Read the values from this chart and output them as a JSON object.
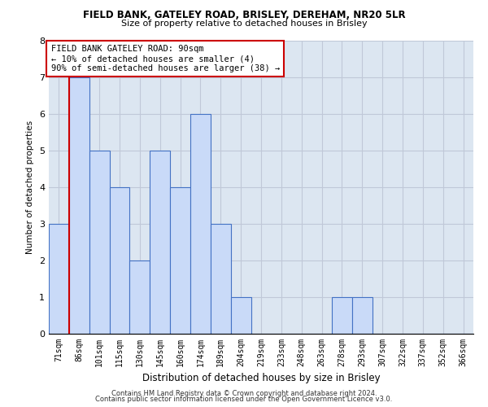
{
  "title1": "FIELD BANK, GATELEY ROAD, BRISLEY, DEREHAM, NR20 5LR",
  "title2": "Size of property relative to detached houses in Brisley",
  "xlabel": "Distribution of detached houses by size in Brisley",
  "ylabel": "Number of detached properties",
  "categories": [
    "71sqm",
    "86sqm",
    "101sqm",
    "115sqm",
    "130sqm",
    "145sqm",
    "160sqm",
    "174sqm",
    "189sqm",
    "204sqm",
    "219sqm",
    "233sqm",
    "248sqm",
    "263sqm",
    "278sqm",
    "293sqm",
    "307sqm",
    "322sqm",
    "337sqm",
    "352sqm",
    "366sqm"
  ],
  "values": [
    3,
    7,
    5,
    4,
    2,
    5,
    4,
    6,
    3,
    1,
    0,
    0,
    0,
    0,
    1,
    1,
    0,
    0,
    0,
    0,
    0
  ],
  "bar_color": "#c9daf8",
  "bar_edge_color": "#4472c4",
  "property_line_x": 0.5,
  "property_line_color": "#cc0000",
  "ylim": [
    0,
    8
  ],
  "yticks": [
    0,
    1,
    2,
    3,
    4,
    5,
    6,
    7,
    8
  ],
  "annotation_text": "FIELD BANK GATELEY ROAD: 90sqm\n← 10% of detached houses are smaller (4)\n90% of semi-detached houses are larger (38) →",
  "annotation_box_color": "#ffffff",
  "annotation_box_edge": "#cc0000",
  "footer1": "Contains HM Land Registry data © Crown copyright and database right 2024.",
  "footer2": "Contains public sector information licensed under the Open Government Licence v3.0.",
  "grid_color": "#c0c8d8",
  "background_color": "#dce6f1",
  "fig_width": 6.0,
  "fig_height": 5.0,
  "fig_dpi": 100
}
